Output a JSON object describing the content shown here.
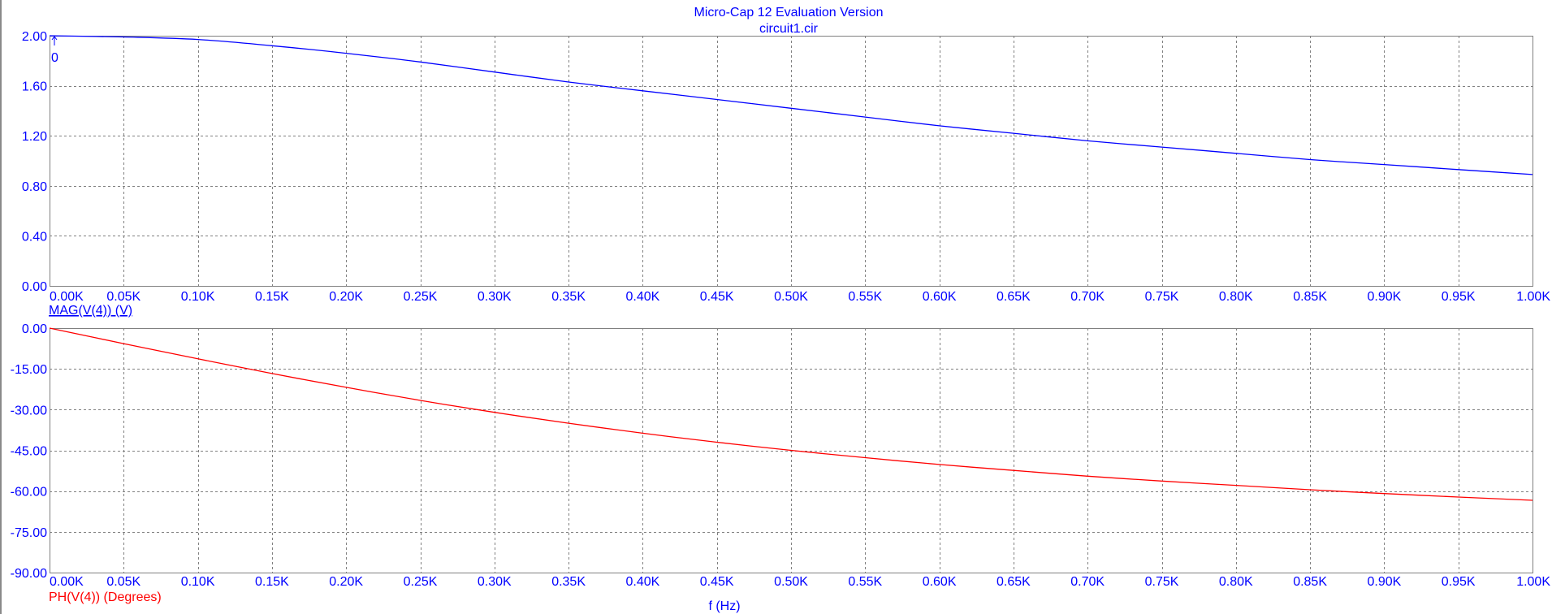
{
  "window": {
    "title": "Micro-Cap 12 Evaluation Version",
    "subtitle": "circuit1.cir"
  },
  "colors": {
    "text": "#0000ff",
    "magnitude": "#0000ff",
    "phase": "#ff0000",
    "grid": "#808080",
    "frame": "#808080"
  },
  "x_axis_label": "f (Hz)",
  "cursor": {
    "marker_label": "0"
  },
  "chart_data": [
    {
      "type": "line",
      "name": "magnitude-plot",
      "ylabel": "MAG(V(4)) (V)",
      "xlabel": "",
      "xlim": [
        0,
        1000
      ],
      "ylim": [
        0,
        2
      ],
      "x_ticks": [
        0,
        50,
        100,
        150,
        200,
        250,
        300,
        350,
        400,
        450,
        500,
        550,
        600,
        650,
        700,
        750,
        800,
        850,
        900,
        950,
        1000
      ],
      "x_tick_labels": [
        "0.00K",
        "0.05K",
        "0.10K",
        "0.15K",
        "0.20K",
        "0.25K",
        "0.30K",
        "0.35K",
        "0.40K",
        "0.45K",
        "0.50K",
        "0.55K",
        "0.60K",
        "0.65K",
        "0.70K",
        "0.75K",
        "0.80K",
        "0.85K",
        "0.90K",
        "0.95K",
        "1.00K"
      ],
      "y_ticks": [
        0,
        0.4,
        0.8,
        1.2,
        1.6,
        2.0
      ],
      "y_tick_labels": [
        "0.00",
        "0.40",
        "0.80",
        "1.20",
        "1.60",
        "2.00"
      ],
      "grid": true,
      "color": "#0000ff",
      "x": [
        0,
        50,
        100,
        150,
        200,
        250,
        300,
        350,
        400,
        450,
        500,
        550,
        600,
        650,
        700,
        750,
        800,
        850,
        900,
        950,
        1000
      ],
      "y": [
        2.0,
        1.99,
        1.97,
        1.92,
        1.86,
        1.79,
        1.71,
        1.63,
        1.56,
        1.49,
        1.42,
        1.35,
        1.28,
        1.22,
        1.16,
        1.11,
        1.06,
        1.01,
        0.97,
        0.93,
        0.89
      ]
    },
    {
      "type": "line",
      "name": "phase-plot",
      "ylabel": "PH(V(4)) (Degrees)",
      "xlabel": "",
      "xlim": [
        0,
        1000
      ],
      "ylim": [
        -90,
        0
      ],
      "x_ticks": [
        0,
        50,
        100,
        150,
        200,
        250,
        300,
        350,
        400,
        450,
        500,
        550,
        600,
        650,
        700,
        750,
        800,
        850,
        900,
        950,
        1000
      ],
      "x_tick_labels": [
        "0.00K",
        "0.05K",
        "0.10K",
        "0.15K",
        "0.20K",
        "0.25K",
        "0.30K",
        "0.35K",
        "0.40K",
        "0.45K",
        "0.50K",
        "0.55K",
        "0.60K",
        "0.65K",
        "0.70K",
        "0.75K",
        "0.80K",
        "0.85K",
        "0.90K",
        "0.95K",
        "1.00K"
      ],
      "y_ticks": [
        0,
        -15,
        -30,
        -45,
        -60,
        -75,
        -90
      ],
      "y_tick_labels": [
        "0.00",
        "-15.00",
        "-30.00",
        "-45.00",
        "-60.00",
        "-75.00",
        "-90.00"
      ],
      "grid": true,
      "color": "#ff0000",
      "x": [
        0,
        50,
        100,
        150,
        200,
        250,
        300,
        350,
        400,
        450,
        500,
        550,
        600,
        650,
        700,
        750,
        800,
        850,
        900,
        950,
        1000
      ],
      "y": [
        0,
        -5.7,
        -11.3,
        -16.7,
        -21.8,
        -26.6,
        -31.0,
        -35.0,
        -38.7,
        -42.0,
        -45.0,
        -47.7,
        -50.2,
        -52.4,
        -54.5,
        -56.3,
        -57.9,
        -59.5,
        -60.9,
        -62.2,
        -63.4
      ]
    }
  ]
}
